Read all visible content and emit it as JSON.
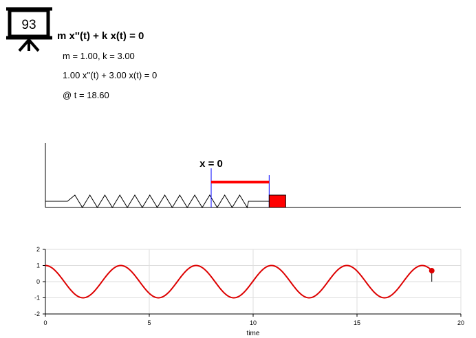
{
  "logo": {
    "number": "93"
  },
  "equation": {
    "title": "m x''(t) + k x(t) = 0",
    "params": "m = 1.00, k = 3.00",
    "instance": "1.00 x''(t) + 3.00 x(t) = 0",
    "time": "@ t = 18.60"
  },
  "spring_scene": {
    "equilibrium_label": "x = 0",
    "displacement": 0.68,
    "colors": {
      "mass": "#ff0000",
      "marker": "#0000ff",
      "spring": "#000000"
    }
  },
  "chart_data": {
    "type": "line",
    "title": "",
    "xlabel": "time",
    "ylabel": "",
    "xlim": [
      0,
      20
    ],
    "ylim": [
      -2,
      2
    ],
    "xticks": [
      "0",
      "5",
      "10",
      "15",
      "20"
    ],
    "yticks": [
      "2",
      "1",
      "0",
      "-1",
      "-2"
    ],
    "grid": true,
    "series": [
      {
        "color": "#dd0000",
        "function": "cos(sqrt(k/m) * t)",
        "t_range": [
          0,
          18.6
        ],
        "current_point": {
          "t": 18.6,
          "x": 0.68
        }
      }
    ]
  }
}
